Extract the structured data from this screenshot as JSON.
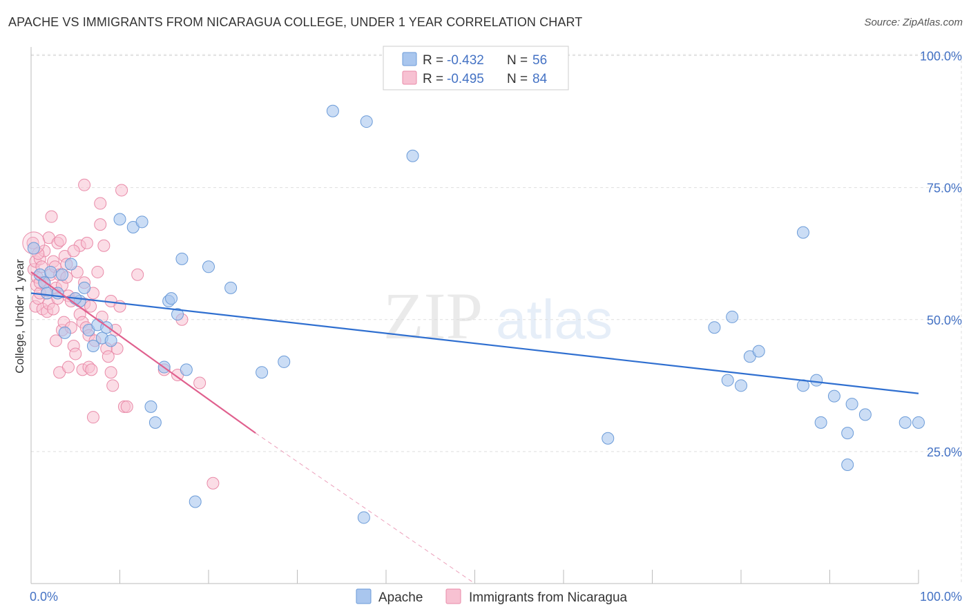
{
  "title": "APACHE VS IMMIGRANTS FROM NICARAGUA COLLEGE, UNDER 1 YEAR CORRELATION CHART",
  "source": "Source: ZipAtlas.com",
  "watermark": {
    "zip": "ZIP",
    "atlas": "atlas"
  },
  "legend": {
    "apache": {
      "r_label": "R = ",
      "r_value": "-0.432",
      "n_label": "N = ",
      "n_value": "56"
    },
    "nicaragua": {
      "r_label": "R = ",
      "r_value": "-0.495",
      "n_label": "N = ",
      "n_value": "84"
    }
  },
  "bottom_legend": {
    "apache": "Apache",
    "nicaragua": "Immigrants from Nicaragua"
  },
  "colors": {
    "apache_fill": "#a9c6ee",
    "apache_stroke": "#6b9bd8",
    "apache_line": "#2f6fd0",
    "nicaragua_fill": "#f7c1d2",
    "nicaragua_stroke": "#e98aa8",
    "nicaragua_line": "#e0608e",
    "tick_text": "#4472c4",
    "grid": "#dddddd"
  },
  "chart_data": {
    "type": "scatter",
    "title": "APACHE VS IMMIGRANTS FROM NICARAGUA COLLEGE, UNDER 1 YEAR CORRELATION CHART",
    "xlabel": "",
    "ylabel": "College, Under 1 year",
    "xlim": [
      0,
      100
    ],
    "ylim": [
      0,
      100
    ],
    "x_tick_labels": [
      "0.0%",
      "100.0%"
    ],
    "y_tick_values": [
      25,
      50,
      75,
      100
    ],
    "y_tick_labels": [
      "25.0%",
      "50.0%",
      "75.0%",
      "100.0%"
    ],
    "grid": true,
    "series": [
      {
        "name": "Apache",
        "points": [
          [
            0.3,
            63.5
          ],
          [
            1.0,
            58.5
          ],
          [
            1.5,
            57
          ],
          [
            1.8,
            55
          ],
          [
            2.2,
            59
          ],
          [
            3.5,
            58.5
          ],
          [
            3.0,
            55
          ],
          [
            4.5,
            60.5
          ],
          [
            3.8,
            47.5
          ],
          [
            5.5,
            53.5
          ],
          [
            6.0,
            56
          ],
          [
            5.0,
            54
          ],
          [
            6.5,
            48
          ],
          [
            7.0,
            45
          ],
          [
            7.5,
            49
          ],
          [
            8.0,
            46.5
          ],
          [
            8.5,
            48.5
          ],
          [
            9.0,
            46
          ],
          [
            10.0,
            69
          ],
          [
            11.5,
            67.5
          ],
          [
            12.5,
            68.5
          ],
          [
            13.5,
            33.5
          ],
          [
            14.0,
            30.5
          ],
          [
            15.0,
            41
          ],
          [
            15.5,
            53.5
          ],
          [
            15.8,
            54
          ],
          [
            16.5,
            51
          ],
          [
            17.0,
            61.5
          ],
          [
            17.5,
            40.5
          ],
          [
            18.5,
            15.5
          ],
          [
            20.0,
            60
          ],
          [
            22.5,
            56
          ],
          [
            26.0,
            40
          ],
          [
            28.5,
            42
          ],
          [
            34.0,
            89.5
          ],
          [
            37.5,
            12.5
          ],
          [
            37.8,
            87.5
          ],
          [
            43.0,
            81
          ],
          [
            65.0,
            27.5
          ],
          [
            77.0,
            48.5
          ],
          [
            78.5,
            38.5
          ],
          [
            79.0,
            50.5
          ],
          [
            80.0,
            37.5
          ],
          [
            81.0,
            43
          ],
          [
            82.0,
            44
          ],
          [
            87.0,
            66.5
          ],
          [
            87.0,
            37.5
          ],
          [
            88.5,
            38.5
          ],
          [
            89.0,
            30.5
          ],
          [
            90.5,
            35.5
          ],
          [
            92.0,
            22.5
          ],
          [
            92.0,
            28.5
          ],
          [
            92.5,
            34
          ],
          [
            94.0,
            32
          ],
          [
            98.5,
            30.5
          ],
          [
            100.0,
            30.5
          ]
        ],
        "trend": {
          "x0": 0,
          "y0": 55.0,
          "x1": 100,
          "y1": 36.0
        }
      },
      {
        "name": "Immigrants from Nicaragua",
        "points": [
          [
            0.2,
            64.5
          ],
          [
            0.3,
            59.5
          ],
          [
            0.5,
            61
          ],
          [
            0.5,
            52.5
          ],
          [
            0.6,
            56.5
          ],
          [
            0.7,
            58
          ],
          [
            0.8,
            54
          ],
          [
            1.0,
            61.5
          ],
          [
            1.0,
            55
          ],
          [
            1.2,
            60
          ],
          [
            1.3,
            52
          ],
          [
            1.5,
            63
          ],
          [
            1.5,
            57
          ],
          [
            1.8,
            51.5
          ],
          [
            1.8,
            55.5
          ],
          [
            2.0,
            65.5
          ],
          [
            2.0,
            53
          ],
          [
            2.2,
            58.5
          ],
          [
            2.3,
            69.5
          ],
          [
            2.5,
            52
          ],
          [
            2.5,
            61
          ],
          [
            2.7,
            60
          ],
          [
            2.8,
            56
          ],
          [
            3.0,
            64.5
          ],
          [
            3.0,
            54
          ],
          [
            3.2,
            58.5
          ],
          [
            3.2,
            40
          ],
          [
            3.5,
            48
          ],
          [
            3.5,
            56.5
          ],
          [
            3.7,
            49.5
          ],
          [
            3.8,
            62
          ],
          [
            4.0,
            60.5
          ],
          [
            4.0,
            58
          ],
          [
            4.2,
            54.5
          ],
          [
            4.2,
            41
          ],
          [
            4.5,
            48.5
          ],
          [
            4.5,
            53.5
          ],
          [
            4.8,
            45
          ],
          [
            5.0,
            54
          ],
          [
            5.0,
            43.5
          ],
          [
            5.2,
            59
          ],
          [
            5.5,
            51
          ],
          [
            5.5,
            64
          ],
          [
            5.8,
            49.5
          ],
          [
            5.8,
            40.5
          ],
          [
            6.0,
            75.5
          ],
          [
            6.0,
            53
          ],
          [
            6.2,
            48.5
          ],
          [
            6.3,
            64.5
          ],
          [
            6.5,
            47
          ],
          [
            6.5,
            41
          ],
          [
            6.7,
            52.5
          ],
          [
            6.8,
            40.5
          ],
          [
            7.0,
            55
          ],
          [
            7.0,
            31.5
          ],
          [
            7.2,
            46
          ],
          [
            7.5,
            59
          ],
          [
            7.8,
            72
          ],
          [
            7.8,
            68
          ],
          [
            8.0,
            50.5
          ],
          [
            8.2,
            64
          ],
          [
            8.5,
            44.5
          ],
          [
            8.7,
            43
          ],
          [
            9.0,
            53.5
          ],
          [
            9.0,
            40
          ],
          [
            9.2,
            37.5
          ],
          [
            9.5,
            48
          ],
          [
            9.7,
            44.5
          ],
          [
            10.0,
            52.5
          ],
          [
            10.2,
            74.5
          ],
          [
            10.5,
            33.5
          ],
          [
            10.8,
            33.5
          ],
          [
            12.0,
            58.5
          ],
          [
            15.0,
            40.5
          ],
          [
            16.5,
            39.5
          ],
          [
            17.0,
            50
          ],
          [
            19.0,
            38
          ],
          [
            20.5,
            19
          ],
          [
            2.8,
            46
          ],
          [
            4.8,
            63
          ],
          [
            1.0,
            57
          ],
          [
            0.8,
            62.5
          ],
          [
            3.3,
            65
          ],
          [
            6.0,
            57
          ]
        ],
        "trend": {
          "x0": 0,
          "y0": 59.0,
          "x1": 25.3,
          "y1": 28.5
        },
        "trend_extension": {
          "x0": 25.3,
          "y0": 28.5,
          "x1": 50,
          "y1": -1.5
        }
      }
    ]
  }
}
